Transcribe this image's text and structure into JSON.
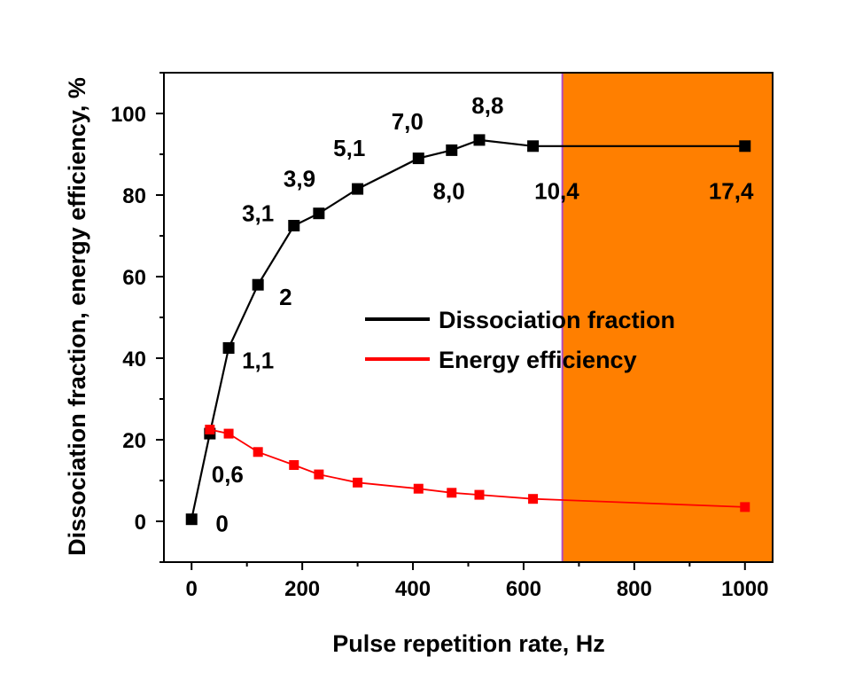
{
  "chart_data": {
    "type": "line",
    "xlabel": "Pulse repetition rate, Hz",
    "ylabel": "Dissociation fraction, energy efficiency, %",
    "xlim": [
      -50,
      1050
    ],
    "ylim": [
      -10,
      110
    ],
    "xticks": [
      0,
      200,
      400,
      600,
      800,
      1000
    ],
    "yticks": [
      0,
      20,
      40,
      60,
      80,
      100
    ],
    "highlight_region": {
      "x_start": 670,
      "x_end": 1050,
      "color": "#ff7f00"
    },
    "legend_position": "center-right",
    "series": [
      {
        "name": "Dissociation fraction",
        "color": "#000000",
        "marker": "square",
        "x": [
          0,
          33,
          67,
          120,
          185,
          230,
          300,
          410,
          470,
          520,
          617,
          1000
        ],
        "y": [
          0.5,
          21.5,
          42.5,
          58,
          72.5,
          75.5,
          81.5,
          89,
          91,
          93.5,
          92,
          92
        ]
      },
      {
        "name": "Energy efficiency",
        "color": "#ff0000",
        "marker": "square",
        "x": [
          33,
          67,
          120,
          185,
          230,
          300,
          410,
          470,
          520,
          617,
          1000
        ],
        "y": [
          22.5,
          21.5,
          17,
          13.8,
          11.5,
          9.5,
          8,
          7,
          6.5,
          5.5,
          3.5
        ]
      }
    ],
    "annotations": [
      {
        "text": "0",
        "x": 55,
        "y": -0.5
      },
      {
        "text": "0,6",
        "x": 65,
        "y": 11.5
      },
      {
        "text": "1,1",
        "x": 120,
        "y": 39.5
      },
      {
        "text": "2",
        "x": 170,
        "y": 55
      },
      {
        "text": "3,1",
        "x": 120,
        "y": 75.5
      },
      {
        "text": "3,9",
        "x": 195,
        "y": 84
      },
      {
        "text": "5,1",
        "x": 285,
        "y": 91.5
      },
      {
        "text": "7,0",
        "x": 390,
        "y": 98
      },
      {
        "text": "8,0",
        "x": 465,
        "y": 81
      },
      {
        "text": "8,8",
        "x": 535,
        "y": 102
      },
      {
        "text": "10,4",
        "x": 660,
        "y": 81
      },
      {
        "text": "17,4",
        "x": 975,
        "y": 81
      }
    ]
  }
}
